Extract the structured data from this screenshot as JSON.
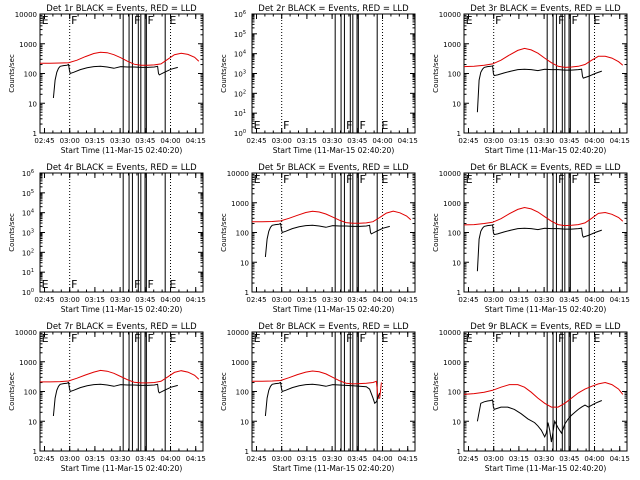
{
  "colors": {
    "events": "#000000",
    "lld": "#e00000",
    "axes": "#000000",
    "background": "#ffffff"
  },
  "shared": {
    "xlabel": "Start Time (11-Mar-15 02:40:20)",
    "ylabel": "Counts/sec",
    "xlim_minutes": [
      2.0,
      99.0
    ],
    "xtick_values_minutes": [
      4.67,
      19.67,
      34.67,
      49.67,
      64.67,
      79.67,
      94.67
    ],
    "xtick_labels": [
      "02:45",
      "03:00",
      "03:15",
      "03:30",
      "03:45",
      "04:00",
      "04:15"
    ],
    "ytick_labels": [
      "1",
      "10",
      "100",
      "1000",
      "10000"
    ],
    "dotted_line_minutes": [
      19.67,
      79.67
    ],
    "solid_line_minutes": [
      51.5,
      55.0,
      57.0,
      60.5,
      62.0,
      64.5,
      65.3,
      76.5
    ]
  },
  "chart_data": [
    {
      "type": "line",
      "title": "Det 1r BLACK = Events, RED = LLD",
      "ylim": [
        1,
        10000
      ],
      "empty": false,
      "markers": [
        {
          "x": 3.0,
          "label": "E"
        },
        {
          "x": 20.5,
          "label": "F"
        },
        {
          "x": 58.0,
          "label": "F"
        },
        {
          "x": 66.0,
          "label": "F"
        },
        {
          "x": 79.0,
          "label": "E"
        }
      ],
      "series": [
        {
          "name": "LLD",
          "color": "red",
          "x": [
            2,
            8,
            14,
            19,
            24,
            29,
            34,
            38,
            42,
            46,
            50,
            54,
            58,
            62,
            66,
            70,
            74,
            78,
            82,
            86,
            90,
            94,
            96.5
          ],
          "y": [
            220,
            220,
            225,
            230,
            280,
            370,
            470,
            520,
            500,
            430,
            340,
            260,
            205,
            190,
            190,
            195,
            210,
            300,
            430,
            480,
            440,
            350,
            260
          ]
        },
        {
          "name": "Events",
          "color": "black",
          "x": [
            10,
            11,
            12,
            13,
            14,
            16,
            18,
            19,
            19.5,
            20,
            22,
            26,
            30,
            34,
            38,
            42,
            46,
            50,
            54,
            58,
            62,
            66,
            70,
            72,
            72.5,
            73,
            76,
            80,
            84
          ],
          "y": [
            15,
            60,
            110,
            150,
            175,
            185,
            190,
            200,
            130,
            100,
            110,
            135,
            155,
            170,
            175,
            165,
            150,
            170,
            165,
            165,
            160,
            160,
            165,
            175,
            100,
            90,
            110,
            140,
            160
          ]
        }
      ]
    },
    {
      "type": "line",
      "title": "Det 2r BLACK = Events, RED = LLD",
      "ylim": [
        1,
        1000000
      ],
      "empty": true,
      "ytick_labels": [
        "10^0",
        "10^1",
        "10^2",
        "10^3",
        "10^4",
        "10^5",
        "10^6"
      ],
      "markers": [
        {
          "x": 3.0,
          "label": "E"
        },
        {
          "x": 20.5,
          "label": "F"
        },
        {
          "x": 58.0,
          "label": "F"
        },
        {
          "x": 66.0,
          "label": "F"
        },
        {
          "x": 79.0,
          "label": "E"
        }
      ],
      "series": []
    },
    {
      "type": "line",
      "title": "Det 3r BLACK = Events, RED = LLD",
      "ylim": [
        1,
        10000
      ],
      "empty": false,
      "markers": [
        {
          "x": 3.0,
          "label": "E"
        },
        {
          "x": 20.5,
          "label": "F"
        },
        {
          "x": 58.0,
          "label": "F"
        },
        {
          "x": 66.0,
          "label": "F"
        },
        {
          "x": 79.0,
          "label": "E"
        }
      ],
      "series": [
        {
          "name": "LLD",
          "color": "red",
          "x": [
            2,
            8,
            14,
            19,
            24,
            29,
            34,
            38,
            42,
            46,
            50,
            54,
            58,
            62,
            66,
            70,
            74,
            78,
            82,
            86,
            90,
            94,
            96.5
          ],
          "y": [
            170,
            175,
            190,
            210,
            280,
            420,
            600,
            700,
            620,
            480,
            330,
            230,
            175,
            160,
            165,
            175,
            200,
            280,
            380,
            380,
            330,
            250,
            190
          ]
        },
        {
          "name": "Events",
          "color": "black",
          "x": [
            10,
            11,
            12,
            13,
            14,
            16,
            18,
            19,
            19.5,
            20,
            22,
            26,
            30,
            34,
            38,
            42,
            46,
            50,
            54,
            58,
            62,
            66,
            70,
            72,
            72.5,
            73,
            76,
            80,
            84
          ],
          "y": [
            5,
            60,
            110,
            140,
            160,
            170,
            175,
            180,
            100,
            85,
            90,
            105,
            120,
            135,
            140,
            135,
            125,
            140,
            135,
            135,
            130,
            130,
            135,
            140,
            80,
            70,
            80,
            100,
            120
          ]
        }
      ]
    },
    {
      "type": "line",
      "title": "Det 4r BLACK = Events, RED = LLD",
      "ylim": [
        1,
        1000000
      ],
      "empty": true,
      "ytick_labels": [
        "10^0",
        "10^1",
        "10^2",
        "10^3",
        "10^4",
        "10^5",
        "10^6"
      ],
      "markers": [
        {
          "x": 3.0,
          "label": "E"
        },
        {
          "x": 20.5,
          "label": "F"
        },
        {
          "x": 58.0,
          "label": "F"
        },
        {
          "x": 66.0,
          "label": "F"
        },
        {
          "x": 79.0,
          "label": "E"
        }
      ],
      "series": []
    },
    {
      "type": "line",
      "title": "Det 5r BLACK = Events, RED = LLD",
      "ylim": [
        1,
        10000
      ],
      "empty": false,
      "markers": [
        {
          "x": 3.0,
          "label": "E"
        },
        {
          "x": 20.5,
          "label": "F"
        },
        {
          "x": 58.0,
          "label": "F"
        },
        {
          "x": 66.0,
          "label": "F"
        },
        {
          "x": 79.0,
          "label": "E"
        }
      ],
      "series": [
        {
          "name": "LLD",
          "color": "red",
          "x": [
            2,
            8,
            14,
            19,
            24,
            29,
            34,
            38,
            42,
            46,
            50,
            54,
            58,
            62,
            66,
            70,
            74,
            78,
            82,
            86,
            90,
            94,
            96.5
          ],
          "y": [
            230,
            230,
            235,
            245,
            300,
            380,
            470,
            520,
            490,
            420,
            330,
            260,
            215,
            205,
            205,
            210,
            230,
            320,
            450,
            520,
            460,
            360,
            270
          ]
        },
        {
          "name": "Events",
          "color": "black",
          "x": [
            10,
            11,
            12,
            13,
            14,
            16,
            18,
            19,
            19.5,
            20,
            22,
            26,
            30,
            34,
            38,
            42,
            46,
            50,
            54,
            58,
            62,
            66,
            70,
            72,
            72.5,
            73,
            76,
            80,
            84
          ],
          "y": [
            15,
            60,
            110,
            150,
            175,
            185,
            190,
            200,
            130,
            100,
            110,
            135,
            155,
            170,
            175,
            165,
            150,
            170,
            165,
            165,
            160,
            160,
            165,
            175,
            100,
            90,
            110,
            140,
            160
          ]
        }
      ]
    },
    {
      "type": "line",
      "title": "Det 6r BLACK = Events, RED = LLD",
      "ylim": [
        1,
        10000
      ],
      "empty": false,
      "markers": [
        {
          "x": 3.0,
          "label": "E"
        },
        {
          "x": 20.5,
          "label": "F"
        },
        {
          "x": 58.0,
          "label": "F"
        },
        {
          "x": 66.0,
          "label": "F"
        },
        {
          "x": 79.0,
          "label": "E"
        }
      ],
      "series": [
        {
          "name": "LLD",
          "color": "red",
          "x": [
            2,
            8,
            14,
            19,
            24,
            29,
            34,
            38,
            42,
            46,
            50,
            54,
            58,
            62,
            66,
            70,
            74,
            78,
            82,
            86,
            90,
            94,
            96.5
          ],
          "y": [
            180,
            185,
            200,
            220,
            290,
            430,
            600,
            690,
            620,
            490,
            340,
            240,
            185,
            170,
            175,
            185,
            210,
            300,
            440,
            470,
            410,
            320,
            240
          ]
        },
        {
          "name": "Events",
          "color": "black",
          "x": [
            10,
            11,
            12,
            13,
            14,
            16,
            18,
            19,
            19.5,
            20,
            22,
            26,
            30,
            34,
            38,
            42,
            46,
            50,
            54,
            58,
            62,
            66,
            70,
            72,
            72.5,
            73,
            76,
            80,
            84
          ],
          "y": [
            5,
            60,
            110,
            140,
            160,
            170,
            175,
            180,
            100,
            85,
            90,
            105,
            120,
            135,
            140,
            135,
            125,
            140,
            135,
            135,
            130,
            130,
            135,
            140,
            80,
            70,
            80,
            100,
            120
          ]
        }
      ]
    },
    {
      "type": "line",
      "title": "Det 7r BLACK = Events, RED = LLD",
      "ylim": [
        1,
        10000
      ],
      "empty": false,
      "markers": [
        {
          "x": 3.0,
          "label": "E"
        },
        {
          "x": 20.5,
          "label": "F"
        },
        {
          "x": 58.0,
          "label": "F"
        },
        {
          "x": 66.0,
          "label": "F"
        },
        {
          "x": 79.0,
          "label": "E"
        }
      ],
      "series": [
        {
          "name": "LLD",
          "color": "red",
          "x": [
            2,
            8,
            14,
            19,
            24,
            29,
            34,
            38,
            42,
            46,
            50,
            54,
            58,
            62,
            66,
            70,
            74,
            78,
            82,
            86,
            90,
            94,
            96.5
          ],
          "y": [
            210,
            210,
            215,
            225,
            280,
            360,
            450,
            510,
            480,
            410,
            320,
            250,
            205,
            195,
            195,
            200,
            220,
            310,
            440,
            500,
            450,
            350,
            260
          ]
        },
        {
          "name": "Events",
          "color": "black",
          "x": [
            10,
            11,
            12,
            13,
            14,
            16,
            18,
            19,
            19.5,
            20,
            22,
            26,
            30,
            34,
            38,
            42,
            46,
            50,
            54,
            58,
            62,
            66,
            70,
            72,
            72.5,
            73,
            76,
            80,
            84
          ],
          "y": [
            15,
            60,
            110,
            150,
            175,
            185,
            190,
            200,
            130,
            100,
            110,
            135,
            155,
            170,
            175,
            165,
            150,
            170,
            165,
            165,
            160,
            160,
            165,
            175,
            100,
            90,
            110,
            140,
            160
          ]
        }
      ]
    },
    {
      "type": "line",
      "title": "Det 8r BLACK = Events, RED = LLD",
      "ylim": [
        1,
        10000
      ],
      "empty": false,
      "markers": [
        {
          "x": 3.0,
          "label": "E"
        },
        {
          "x": 20.5,
          "label": "F"
        },
        {
          "x": 58.0,
          "label": "F"
        },
        {
          "x": 66.0,
          "label": "F"
        },
        {
          "x": 79.0,
          "label": "E"
        }
      ],
      "series": [
        {
          "name": "LLD",
          "color": "red",
          "x": [
            2,
            8,
            14,
            19,
            24,
            29,
            34,
            38,
            42,
            46,
            50,
            54,
            58,
            62,
            66,
            70,
            74,
            76,
            77,
            78,
            79
          ],
          "y": [
            220,
            220,
            225,
            235,
            290,
            370,
            450,
            490,
            460,
            390,
            300,
            230,
            190,
            180,
            185,
            190,
            200,
            220,
            60,
            60,
            200
          ]
        },
        {
          "name": "Events",
          "color": "black",
          "x": [
            10,
            11,
            12,
            13,
            14,
            16,
            18,
            19,
            19.5,
            20,
            22,
            26,
            30,
            34,
            38,
            42,
            46,
            50,
            54,
            58,
            62,
            66,
            70,
            72,
            74,
            75,
            76,
            78
          ],
          "y": [
            15,
            60,
            110,
            150,
            175,
            185,
            190,
            200,
            130,
            100,
            110,
            135,
            155,
            170,
            175,
            165,
            150,
            170,
            165,
            160,
            155,
            150,
            145,
            120,
            60,
            40,
            45,
            90
          ]
        }
      ]
    },
    {
      "type": "line",
      "title": "Det 9r BLACK = Events, RED = LLD",
      "ylim": [
        1,
        10000
      ],
      "empty": false,
      "markers": [
        {
          "x": 3.0,
          "label": "E"
        },
        {
          "x": 20.5,
          "label": "F"
        },
        {
          "x": 58.0,
          "label": "F"
        },
        {
          "x": 66.0,
          "label": "F"
        },
        {
          "x": 79.0,
          "label": "E"
        }
      ],
      "series": [
        {
          "name": "LLD",
          "color": "red",
          "x": [
            2,
            8,
            14,
            19,
            24,
            29,
            34,
            38,
            42,
            46,
            50,
            54,
            58,
            62,
            66,
            70,
            74,
            78,
            82,
            86,
            90,
            94,
            96.5
          ],
          "y": [
            80,
            85,
            95,
            110,
            140,
            170,
            170,
            140,
            95,
            60,
            40,
            30,
            30,
            40,
            60,
            90,
            120,
            150,
            180,
            200,
            170,
            120,
            80
          ]
        },
        {
          "name": "Events",
          "color": "black",
          "x": [
            10,
            12,
            14,
            16,
            18,
            19,
            19.5,
            20,
            24,
            28,
            32,
            36,
            40,
            44,
            46,
            48,
            50,
            51,
            52,
            53,
            54,
            56,
            58,
            60,
            62,
            64,
            66,
            68,
            70,
            72,
            74,
            76,
            80,
            84
          ],
          "y": [
            10,
            40,
            45,
            48,
            50,
            52,
            30,
            25,
            30,
            30,
            25,
            18,
            12,
            9,
            7,
            5,
            3,
            4,
            9,
            5,
            2,
            10,
            6,
            4,
            8,
            12,
            16,
            20,
            25,
            30,
            35,
            30,
            40,
            50
          ]
        }
      ]
    }
  ]
}
